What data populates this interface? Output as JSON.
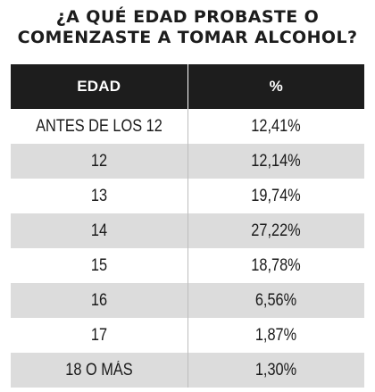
{
  "title": {
    "line1": "¿A QUÉ EDAD PROBASTE O",
    "line2": "COMENZASTE A TOMAR ALCOHOL?"
  },
  "table": {
    "headers": [
      "EDAD",
      "%"
    ],
    "rows": [
      [
        "ANTES DE LOS 12",
        "12,41%"
      ],
      [
        "12",
        "12,14%"
      ],
      [
        "13",
        "19,74%"
      ],
      [
        "14",
        "27,22%"
      ],
      [
        "15",
        "18,78%"
      ],
      [
        "16",
        "6,56%"
      ],
      [
        "17",
        "1,87%"
      ],
      [
        "18 O MÁS",
        "1,30%"
      ]
    ]
  },
  "colors": {
    "header_bg": "#1d1d1d",
    "stripe": "#dcdcdc"
  },
  "chart_data": {
    "type": "table",
    "title": "¿A QUÉ EDAD PROBASTE O COMENZASTE A TOMAR ALCOHOL?",
    "columns": [
      "EDAD",
      "%"
    ],
    "categories": [
      "ANTES DE LOS 12",
      "12",
      "13",
      "14",
      "15",
      "16",
      "17",
      "18 O MÁS"
    ],
    "values": [
      12.41,
      12.14,
      19.74,
      27.22,
      18.78,
      6.56,
      1.87,
      1.3
    ]
  }
}
